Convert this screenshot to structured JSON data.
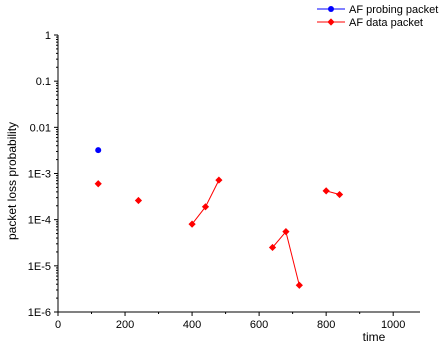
{
  "chart_data": {
    "type": "scatter",
    "xlabel": "time",
    "ylabel": "packet loss probability",
    "xlim": [
      0,
      1080
    ],
    "ylim": [
      1e-06,
      1
    ],
    "yscale": "log",
    "x_ticks": [
      0,
      200,
      400,
      600,
      800,
      1000
    ],
    "x_tick_labels": [
      "0",
      "200",
      "400",
      "600",
      "800",
      "1000"
    ],
    "y_ticks": [
      1e-06,
      1e-05,
      0.0001,
      0.001,
      0.01,
      0.1,
      1
    ],
    "y_tick_labels": [
      "1E-6",
      "1E-5",
      "1E-4",
      "1E-3",
      "0.01",
      "0.1",
      "1"
    ],
    "grid": false,
    "legend_position": "top-right",
    "series": [
      {
        "name": "AF probing packet",
        "color": "#0000ff",
        "marker": "circle",
        "segments": [
          [
            {
              "x": 120,
              "y": 0.0032
            }
          ]
        ]
      },
      {
        "name": "AF data packet",
        "color": "#ff0000",
        "marker": "diamond",
        "segments": [
          [
            {
              "x": 120,
              "y": 0.0006
            }
          ],
          [
            {
              "x": 240,
              "y": 0.00026
            }
          ],
          [
            {
              "x": 400,
              "y": 8e-05
            },
            {
              "x": 440,
              "y": 0.00019
            },
            {
              "x": 480,
              "y": 0.00072
            }
          ],
          [
            {
              "x": 640,
              "y": 2.5e-05
            },
            {
              "x": 680,
              "y": 5.5e-05
            },
            {
              "x": 720,
              "y": 3.8e-06
            }
          ],
          [
            {
              "x": 800,
              "y": 0.00042
            },
            {
              "x": 840,
              "y": 0.00035
            }
          ]
        ]
      }
    ]
  }
}
